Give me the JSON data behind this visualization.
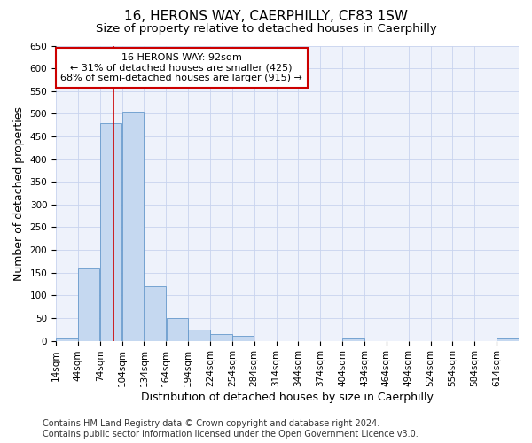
{
  "title": "16, HERONS WAY, CAERPHILLY, CF83 1SW",
  "subtitle": "Size of property relative to detached houses in Caerphilly",
  "xlabel": "Distribution of detached houses by size in Caerphilly",
  "ylabel": "Number of detached properties",
  "bin_starts": [
    14,
    44,
    74,
    104,
    134,
    164,
    194,
    224,
    254,
    284,
    314,
    344,
    374,
    404,
    434,
    464,
    494,
    524,
    554,
    584,
    614
  ],
  "bin_width": 30,
  "bar_heights": [
    5,
    160,
    480,
    505,
    120,
    50,
    25,
    15,
    10,
    0,
    0,
    0,
    0,
    5,
    0,
    0,
    0,
    0,
    0,
    0,
    5
  ],
  "bar_color": "#c5d8f0",
  "bar_edge_color": "#6699cc",
  "property_size": 92,
  "property_label": "16 HERONS WAY: 92sqm",
  "annotation_line1": "← 31% of detached houses are smaller (425)",
  "annotation_line2": "68% of semi-detached houses are larger (915) →",
  "vline_color": "#cc0000",
  "annotation_box_edge": "#cc0000",
  "ylim": [
    0,
    650
  ],
  "yticks": [
    0,
    50,
    100,
    150,
    200,
    250,
    300,
    350,
    400,
    450,
    500,
    550,
    600,
    650
  ],
  "footer_line1": "Contains HM Land Registry data © Crown copyright and database right 2024.",
  "footer_line2": "Contains public sector information licensed under the Open Government Licence v3.0.",
  "plot_bg_color": "#eef2fb",
  "title_fontsize": 11,
  "subtitle_fontsize": 9.5,
  "axis_label_fontsize": 9,
  "tick_fontsize": 7.5,
  "footer_fontsize": 7
}
